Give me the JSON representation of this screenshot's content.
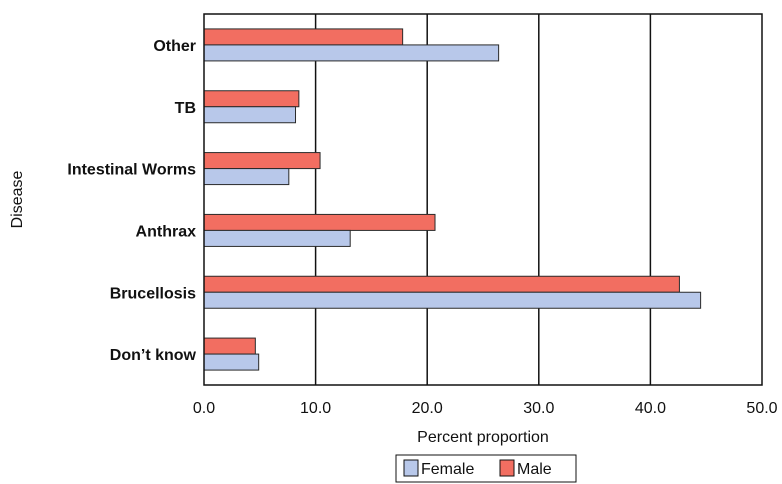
{
  "chart_data": {
    "type": "bar",
    "orientation": "horizontal",
    "categories": [
      "Other",
      "TB",
      "Intestinal Worms",
      "Anthrax",
      "Brucellosis",
      "Don’t know"
    ],
    "series": [
      {
        "name": "Male",
        "color": "#f26e61",
        "values": [
          17.8,
          8.5,
          10.4,
          20.7,
          42.6,
          4.6
        ]
      },
      {
        "name": "Female",
        "color": "#b8c8ea",
        "values": [
          26.4,
          8.2,
          7.6,
          13.1,
          44.5,
          4.9
        ]
      }
    ],
    "xlabel": "Percent proportion",
    "ylabel": "Disease",
    "xlim": [
      0,
      50
    ],
    "xticks": [
      "0.0",
      "10.0",
      "20.0",
      "30.0",
      "40.0",
      "50.0"
    ],
    "grid": "vertical",
    "legend": {
      "position": "bottom",
      "entries": [
        "Female",
        "Male"
      ]
    }
  }
}
